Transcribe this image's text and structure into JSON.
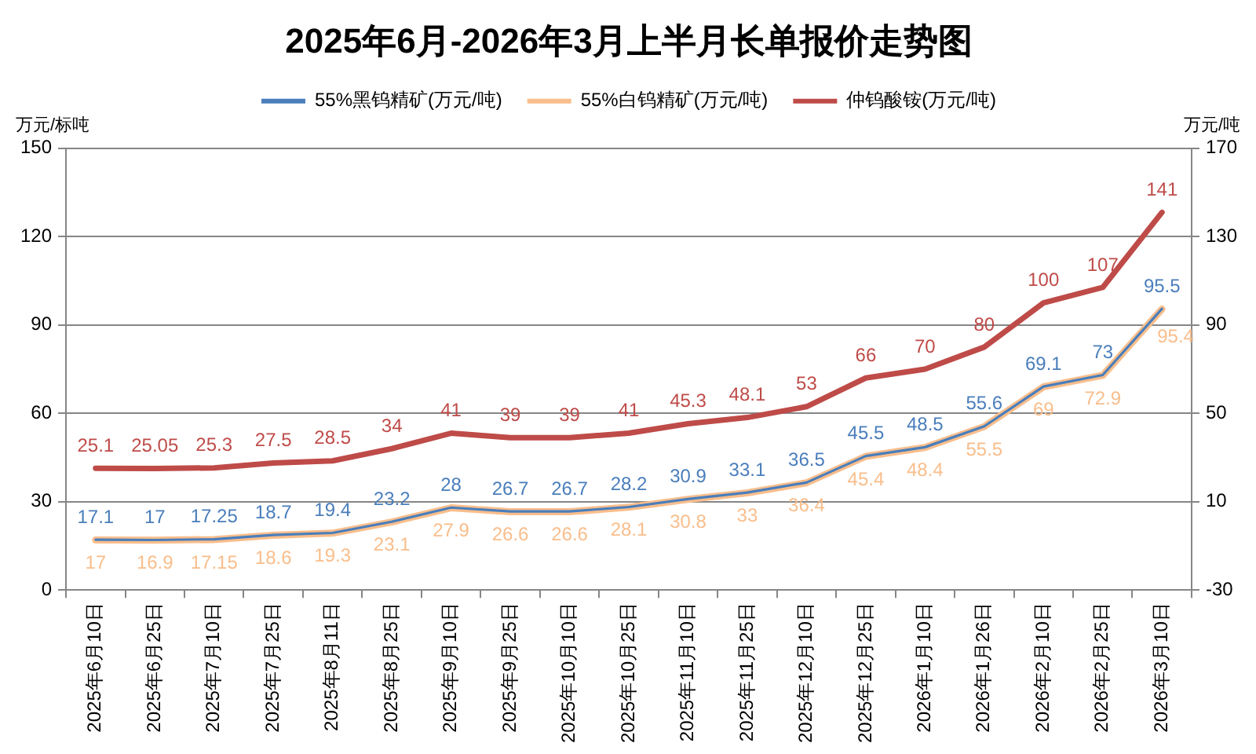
{
  "chart_data": {
    "type": "line",
    "title": "2025年6月-2026年3月上半月长单报价走势图",
    "ylabel": "万元/标吨",
    "y2label": "万元/吨",
    "categories": [
      "2025年6月10日",
      "2025年6月25日",
      "2025年7月10日",
      "2025年7月25日",
      "2025年8月11日",
      "2025年8月25日",
      "2025年9月10日",
      "2025年9月25日",
      "2025年10月10日",
      "2025年10月25日",
      "2025年11月10日",
      "2025年11月25日",
      "2025年12月10日",
      "2025年12月25日",
      "2026年1月10日",
      "2026年1月26日",
      "2026年2月10日",
      "2026年2月25日",
      "2026年3月10日"
    ],
    "series": [
      {
        "name": "55%黑钨精矿(万元/吨)",
        "color": "#4a7ebb",
        "values": [
          17.1,
          17,
          17.25,
          18.7,
          19.4,
          23.2,
          28,
          26.7,
          26.7,
          28.2,
          30.9,
          33.1,
          36.5,
          45.5,
          48.5,
          55.6,
          69.1,
          73,
          95.5
        ]
      },
      {
        "name": "55%白钨精矿(万元/吨)",
        "color": "#f9be8c",
        "values": [
          17,
          16.9,
          17.15,
          18.6,
          19.3,
          23.1,
          27.9,
          26.6,
          26.6,
          28.1,
          30.8,
          33,
          36.4,
          45.4,
          48.4,
          55.5,
          69,
          72.9,
          95.4
        ]
      },
      {
        "name": "仲钨酸铵(万元/吨)",
        "color": "#be4b48",
        "axis": "y2",
        "values": [
          25.1,
          25.05,
          25.3,
          27.5,
          28.5,
          34,
          41,
          39,
          39,
          41,
          45.3,
          48.1,
          53,
          66,
          70,
          80,
          100,
          107,
          141
        ]
      }
    ],
    "ylim": [
      0,
      150
    ],
    "yticks": [
      0,
      30,
      60,
      90,
      120,
      150
    ],
    "y2lim": [
      -30,
      170
    ],
    "y2ticks": [
      -30,
      10,
      50,
      90,
      130,
      170
    ],
    "grid": "y",
    "legend": "top",
    "marker": "none",
    "data_labels": true
  }
}
